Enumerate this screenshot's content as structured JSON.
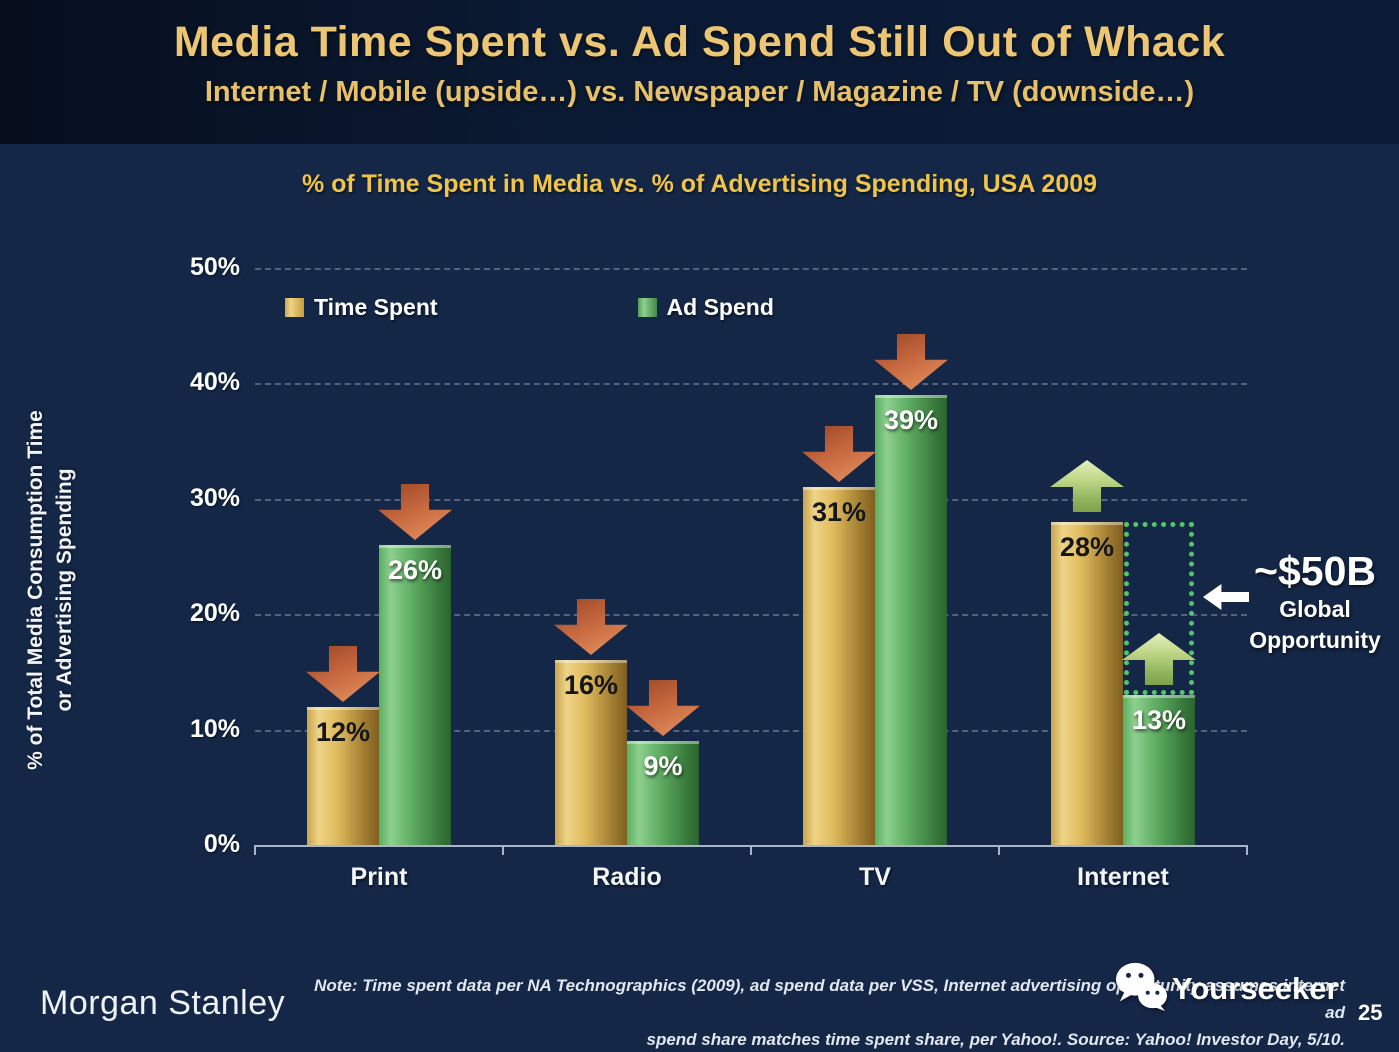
{
  "slide": {
    "title": "Media Time Spent vs. Ad Spend Still Out of Whack",
    "subtitle": "Internet / Mobile (upside…) vs. Newspaper / Magazine / TV (downside…)",
    "page_number": "25"
  },
  "chart_data": {
    "type": "bar",
    "title": "% of Time Spent in Media vs. % of Advertising Spending, USA 2009",
    "ylabel_line1": "% of Total Media Consumption Time",
    "ylabel_line2": "or Advertising Spending",
    "categories": [
      "Print",
      "Radio",
      "TV",
      "Internet"
    ],
    "series": [
      {
        "name": "Time Spent",
        "color": "#d9b358",
        "values": [
          12,
          16,
          31,
          28
        ]
      },
      {
        "name": "Ad Spend",
        "color": "#4ea957",
        "values": [
          26,
          9,
          39,
          13
        ]
      }
    ],
    "unit": "%",
    "ylim": [
      0,
      50
    ],
    "ytick_values": [
      0,
      10,
      20,
      30,
      40,
      50
    ],
    "ytick_labels": [
      "0%",
      "10%",
      "20%",
      "30%",
      "40%",
      "50%"
    ],
    "grid": "dashed horizontal gridlines at each 10%",
    "legend_position": "top-left inside plot",
    "annotations": {
      "value": "~$50B",
      "line1": "Global",
      "line2": "Opportunity",
      "down_arrow_targets": [
        "Print Time Spent",
        "Print Ad Spend",
        "Radio Time Spent",
        "Radio Ad Spend",
        "TV Time Spent",
        "TV Ad Spend"
      ],
      "up_arrow_targets": [
        "Internet Time Spent",
        "Internet Ad Spend"
      ],
      "opportunity_gap": "dotted box from Internet Ad Spend 13% up to 28%",
      "colors": {
        "down_arrow": "#c4663e",
        "up_arrow": "#b5cc7d",
        "opportunity_outline": "#53c56a",
        "title_gold": "#ecc673",
        "chart_title_gold": "#f0c448"
      }
    }
  },
  "footer": {
    "brand": "Morgan Stanley",
    "note_line1": "Note: Time spent data per NA Technographics (2009), ad spend data per VSS, Internet advertising opportunity assumes internet ad",
    "note_line2": "spend share matches time spent share, per Yahoo!. Source: Yahoo! Investor Day, 5/10.",
    "watermark": "Yourseeker"
  }
}
